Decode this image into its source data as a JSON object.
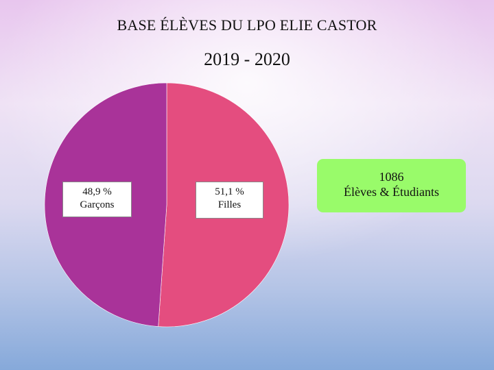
{
  "chart_data": {
    "type": "pie",
    "title": "BASE ÉLÈVES DU LPO ELIE CASTOR",
    "subtitle": "2019 - 2020",
    "slices": [
      {
        "label": "Filles",
        "value_text": "51,1 %",
        "value": 51.1,
        "color": "#e44d7f"
      },
      {
        "label": "Garçons",
        "value_text": "48,9 %",
        "value": 48.9,
        "color": "#a93399"
      }
    ],
    "total": {
      "value": "1086",
      "label": "Élèves & Étudiants"
    }
  }
}
